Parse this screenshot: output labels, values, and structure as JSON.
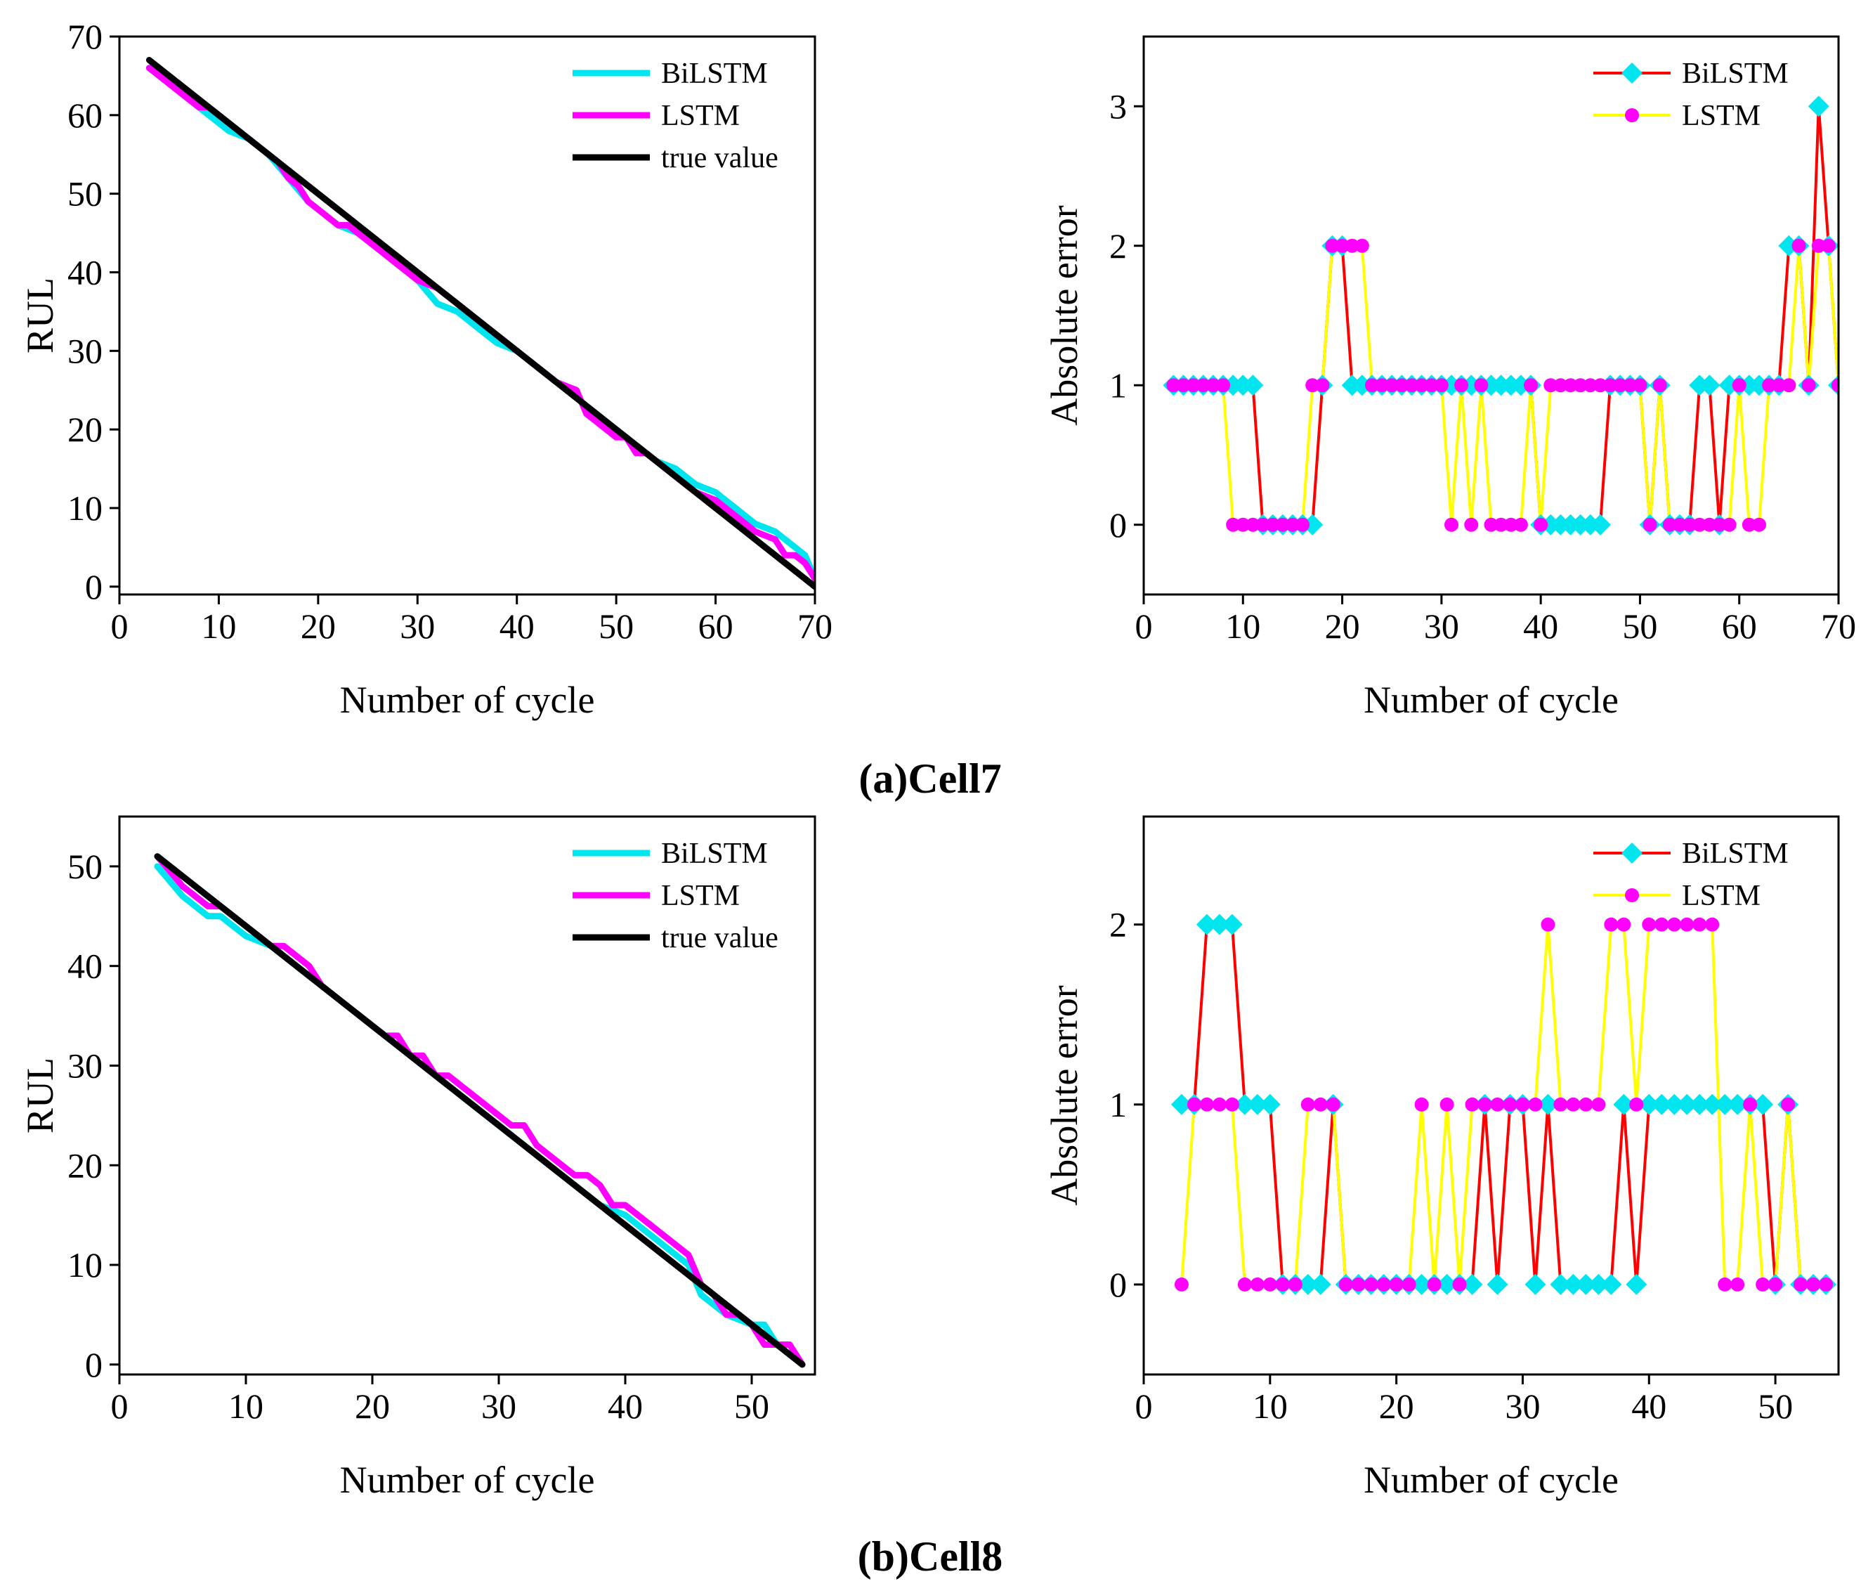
{
  "chart_data": [
    {
      "id": "cell7-rul",
      "type": "line",
      "xlabel": "Number of cycle",
      "ylabel": "RUL",
      "xlim": [
        0,
        70
      ],
      "ylim": [
        -1,
        70
      ],
      "xticks": [
        0,
        10,
        20,
        30,
        40,
        50,
        60,
        70
      ],
      "yticks": [
        0,
        10,
        20,
        30,
        40,
        50,
        60,
        70
      ],
      "legend_position": "top-right",
      "grid": false,
      "series": [
        {
          "name": "BiLSTM",
          "color": "#00e5ee",
          "x": [
            3,
            5,
            7,
            9,
            11,
            13,
            15,
            17,
            19,
            20,
            22,
            24,
            26,
            28,
            30,
            32,
            34,
            36,
            38,
            40,
            42,
            44,
            46,
            48,
            50,
            52,
            54,
            56,
            58,
            60,
            62,
            64,
            66,
            68,
            69,
            70
          ],
          "values": [
            66,
            64,
            62,
            60,
            58,
            57,
            55,
            52,
            49,
            48,
            46,
            45,
            43,
            41,
            39,
            36,
            35,
            33,
            31,
            30,
            28,
            26,
            24,
            22,
            20,
            18,
            16,
            15,
            13,
            12,
            10,
            8,
            7,
            5,
            4,
            1
          ]
        },
        {
          "name": "LSTM",
          "color": "#ff00ff",
          "x": [
            3,
            5,
            7,
            8,
            9,
            10,
            12,
            14,
            16,
            17,
            18,
            19,
            20,
            22,
            23,
            24,
            26,
            28,
            30,
            32,
            34,
            36,
            38,
            40,
            42,
            44,
            46,
            47,
            48,
            50,
            51,
            52,
            53,
            54,
            56,
            58,
            60,
            62,
            64,
            66,
            67,
            68,
            69,
            70
          ],
          "values": [
            66,
            64,
            62,
            61,
            61,
            60,
            58,
            56,
            54,
            52,
            51,
            49,
            48,
            46,
            46,
            45,
            43,
            41,
            39,
            38,
            36,
            34,
            32,
            30,
            28,
            26,
            25,
            22,
            21,
            19,
            19,
            17,
            17,
            16,
            14,
            12,
            11,
            9,
            7,
            6,
            4,
            4,
            3,
            1
          ]
        },
        {
          "name": "true value",
          "color": "#000000",
          "x": [
            3,
            70
          ],
          "values": [
            67,
            0
          ]
        }
      ]
    },
    {
      "id": "cell7-error",
      "type": "line",
      "xlabel": "Number of cycle",
      "ylabel": "Absolute error",
      "xlim": [
        0,
        70
      ],
      "ylim": [
        -0.5,
        3.5
      ],
      "xticks": [
        0,
        10,
        20,
        30,
        40,
        50,
        60,
        70
      ],
      "yticks": [
        0,
        1,
        2,
        3
      ],
      "legend_position": "top-right",
      "grid": false,
      "series": [
        {
          "name": "BiLSTM",
          "color": "#ff0000",
          "marker_color": "#00e5ee",
          "marker": "diamond",
          "x": [
            3,
            4,
            5,
            6,
            7,
            8,
            9,
            10,
            11,
            12,
            13,
            14,
            15,
            16,
            17,
            18,
            19,
            20,
            21,
            22,
            23,
            24,
            25,
            26,
            27,
            28,
            29,
            30,
            31,
            32,
            33,
            34,
            35,
            36,
            37,
            38,
            39,
            40,
            41,
            42,
            43,
            44,
            45,
            46,
            47,
            48,
            49,
            50,
            51,
            52,
            53,
            54,
            55,
            56,
            57,
            58,
            59,
            60,
            61,
            62,
            63,
            64,
            65,
            66,
            67,
            68,
            69,
            70
          ],
          "values": [
            1,
            1,
            1,
            1,
            1,
            1,
            1,
            1,
            1,
            0,
            0,
            0,
            0,
            0,
            0,
            1,
            2,
            2,
            1,
            1,
            1,
            1,
            1,
            1,
            1,
            1,
            1,
            1,
            1,
            1,
            1,
            1,
            1,
            1,
            1,
            1,
            1,
            0,
            0,
            0,
            0,
            0,
            0,
            0,
            1,
            1,
            1,
            1,
            0,
            1,
            0,
            0,
            0,
            1,
            1,
            0,
            1,
            1,
            1,
            1,
            1,
            1,
            2,
            2,
            1,
            3,
            2,
            1
          ]
        },
        {
          "name": "LSTM",
          "color": "#ffff00",
          "marker_color": "#ff00ff",
          "marker": "circle",
          "x": [
            3,
            4,
            5,
            6,
            7,
            8,
            9,
            10,
            11,
            12,
            13,
            14,
            15,
            16,
            17,
            18,
            19,
            20,
            21,
            22,
            23,
            24,
            25,
            26,
            27,
            28,
            29,
            30,
            31,
            32,
            33,
            34,
            35,
            36,
            37,
            38,
            39,
            40,
            41,
            42,
            43,
            44,
            45,
            46,
            47,
            48,
            49,
            50,
            51,
            52,
            53,
            54,
            55,
            56,
            57,
            58,
            59,
            60,
            61,
            62,
            63,
            64,
            65,
            66,
            67,
            68,
            69,
            70
          ],
          "values": [
            1,
            1,
            1,
            1,
            1,
            1,
            0,
            0,
            0,
            0,
            0,
            0,
            0,
            0,
            1,
            1,
            2,
            2,
            2,
            2,
            1,
            1,
            1,
            1,
            1,
            1,
            1,
            1,
            0,
            1,
            0,
            1,
            0,
            0,
            0,
            0,
            1,
            0,
            1,
            1,
            1,
            1,
            1,
            1,
            1,
            1,
            1,
            1,
            0,
            1,
            0,
            0,
            0,
            0,
            0,
            0,
            0,
            1,
            0,
            0,
            1,
            1,
            1,
            2,
            1,
            2,
            2,
            1
          ]
        }
      ]
    },
    {
      "id": "cell8-rul",
      "type": "line",
      "xlabel": "Number of cycle",
      "ylabel": "RUL",
      "xlim": [
        0,
        55
      ],
      "ylim": [
        -1,
        55
      ],
      "xticks": [
        0,
        10,
        20,
        30,
        40,
        50
      ],
      "yticks": [
        0,
        10,
        20,
        30,
        40,
        50
      ],
      "legend_position": "top-right",
      "grid": false,
      "series": [
        {
          "name": "BiLSTM",
          "color": "#00e5ee",
          "x": [
            3,
            5,
            7,
            8,
            10,
            12,
            14,
            16,
            18,
            20,
            22,
            24,
            26,
            28,
            30,
            32,
            34,
            36,
            38,
            40,
            42,
            44,
            45,
            46,
            48,
            50,
            51,
            52,
            54
          ],
          "values": [
            50,
            47,
            45,
            45,
            43,
            42,
            40,
            38,
            36,
            34,
            32,
            30,
            28,
            26,
            24,
            22,
            20,
            18,
            16,
            15,
            13,
            11,
            10,
            7,
            5,
            4,
            4,
            2,
            0
          ]
        },
        {
          "name": "LSTM",
          "color": "#ff00ff",
          "x": [
            3,
            5,
            7,
            8,
            10,
            12,
            13,
            15,
            16,
            18,
            20,
            21,
            22,
            23,
            24,
            25,
            26,
            28,
            30,
            31,
            32,
            33,
            35,
            36,
            37,
            38,
            39,
            40,
            42,
            44,
            45,
            46,
            47,
            48,
            49,
            50,
            51,
            52,
            53,
            54
          ],
          "values": [
            51,
            48,
            46,
            46,
            44,
            42,
            42,
            40,
            38,
            36,
            34,
            33,
            33,
            31,
            31,
            29,
            29,
            27,
            25,
            24,
            24,
            22,
            20,
            19,
            19,
            18,
            16,
            16,
            14,
            12,
            11,
            8,
            7,
            5,
            5,
            4,
            2,
            2,
            2,
            0
          ]
        },
        {
          "name": "true value",
          "color": "#000000",
          "x": [
            3,
            54
          ],
          "values": [
            51,
            0
          ]
        }
      ]
    },
    {
      "id": "cell8-error",
      "type": "line",
      "xlabel": "Number of cycle",
      "ylabel": "Absolute error",
      "xlim": [
        0,
        55
      ],
      "ylim": [
        -0.5,
        2.6
      ],
      "xticks": [
        0,
        10,
        20,
        30,
        40,
        50
      ],
      "yticks": [
        0,
        1,
        2
      ],
      "legend_position": "top-right",
      "grid": false,
      "series": [
        {
          "name": "BiLSTM",
          "color": "#ff0000",
          "marker_color": "#00e5ee",
          "marker": "diamond",
          "x": [
            3,
            4,
            5,
            6,
            7,
            8,
            9,
            10,
            11,
            12,
            13,
            14,
            15,
            16,
            17,
            18,
            19,
            20,
            21,
            22,
            23,
            24,
            25,
            26,
            27,
            28,
            29,
            30,
            31,
            32,
            33,
            34,
            35,
            36,
            37,
            38,
            39,
            40,
            41,
            42,
            43,
            44,
            45,
            46,
            47,
            48,
            49,
            50,
            51,
            52,
            53,
            54
          ],
          "values": [
            1,
            1,
            2,
            2,
            2,
            1,
            1,
            1,
            0,
            0,
            0,
            0,
            1,
            0,
            0,
            0,
            0,
            0,
            0,
            0,
            0,
            0,
            0,
            0,
            1,
            0,
            1,
            1,
            0,
            1,
            0,
            0,
            0,
            0,
            0,
            1,
            0,
            1,
            1,
            1,
            1,
            1,
            1,
            1,
            1,
            1,
            1,
            0,
            1,
            0,
            0,
            0
          ]
        },
        {
          "name": "LSTM",
          "color": "#ffff00",
          "marker_color": "#ff00ff",
          "marker": "circle",
          "x": [
            3,
            4,
            5,
            6,
            7,
            8,
            9,
            10,
            11,
            12,
            13,
            14,
            15,
            16,
            17,
            18,
            19,
            20,
            21,
            22,
            23,
            24,
            25,
            26,
            27,
            28,
            29,
            30,
            31,
            32,
            33,
            34,
            35,
            36,
            37,
            38,
            39,
            40,
            41,
            42,
            43,
            44,
            45,
            46,
            47,
            48,
            49,
            50,
            51,
            52,
            53,
            54
          ],
          "values": [
            0,
            1,
            1,
            1,
            1,
            0,
            0,
            0,
            0,
            0,
            1,
            1,
            1,
            0,
            0,
            0,
            0,
            0,
            0,
            1,
            0,
            1,
            0,
            1,
            1,
            1,
            1,
            1,
            1,
            2,
            1,
            1,
            1,
            1,
            2,
            2,
            1,
            2,
            2,
            2,
            2,
            2,
            2,
            0,
            0,
            1,
            0,
            0,
            1,
            0,
            0,
            0
          ]
        }
      ]
    }
  ],
  "captions": {
    "cell7": "(a)Cell7",
    "cell8": "(b)Cell8"
  }
}
